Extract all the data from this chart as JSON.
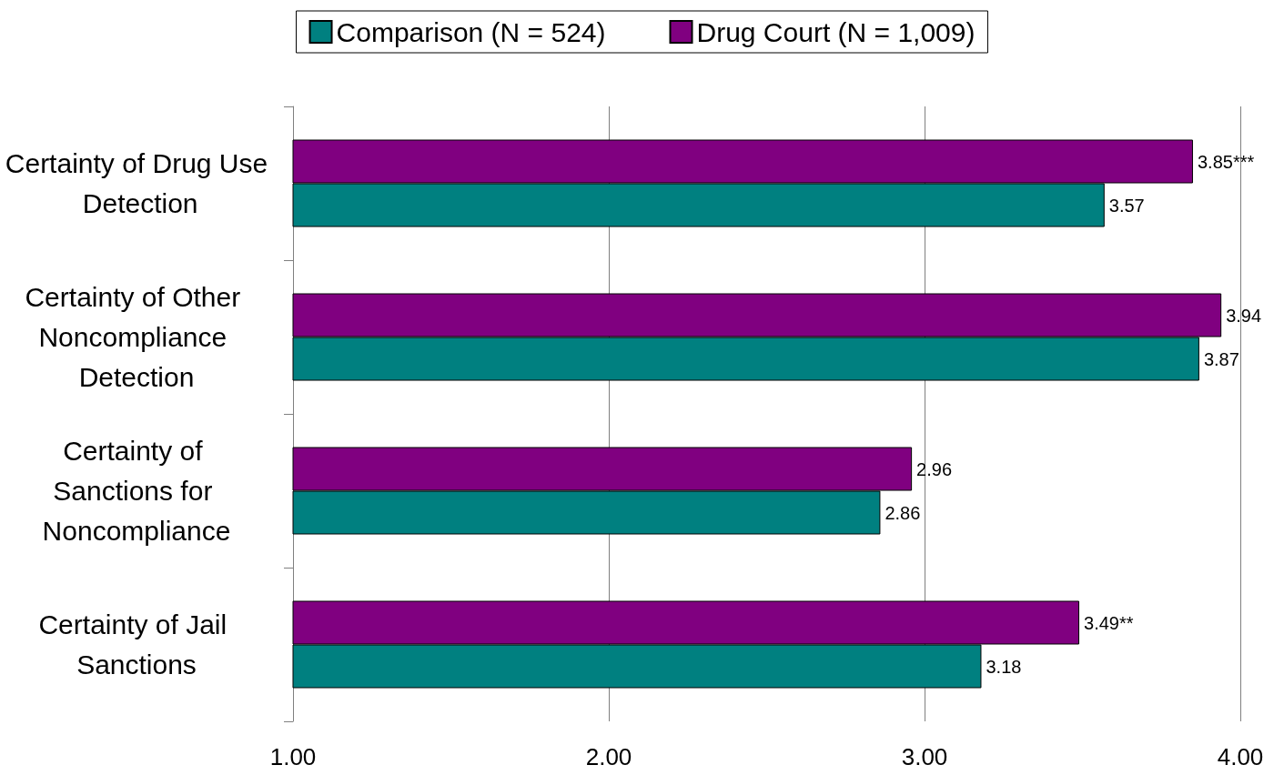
{
  "chart_data": {
    "type": "bar",
    "orientation": "horizontal",
    "categories": [
      "Certainty of Drug Use Detection",
      "Certainty of Other Noncompliance Detection",
      "Certainty of Sanctions for Noncompliance",
      "Certainty of Jail Sanctions"
    ],
    "series": [
      {
        "name": "Comparison (N = 524)",
        "color": "#008080",
        "values": [
          3.57,
          3.87,
          2.86,
          3.18
        ],
        "value_labels": [
          "3.57",
          "3.87",
          "2.86",
          "3.18"
        ]
      },
      {
        "name": "Drug Court (N = 1,009)",
        "color": "#800080",
        "values": [
          3.85,
          3.94,
          2.96,
          3.49
        ],
        "value_labels": [
          "3.85***",
          "3.94",
          "2.96",
          "3.49**"
        ]
      }
    ],
    "xlim": [
      1,
      4
    ],
    "xticks": [
      {
        "value": 1,
        "label": "1.00"
      },
      {
        "value": 2,
        "label": "2.00"
      },
      {
        "value": 3,
        "label": "3.00"
      },
      {
        "value": 4,
        "label": "4.00"
      }
    ],
    "grid": "x",
    "legend": "top"
  }
}
